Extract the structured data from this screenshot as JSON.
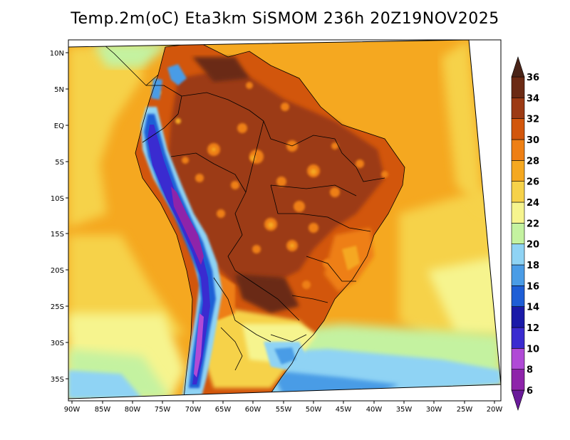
{
  "title": "Temp.2m(oC) Eta3km SiSMOM 236h 20Z19NOV2025",
  "map": {
    "variable": "2 m temperature",
    "units": "oC",
    "lon_labels": [
      "90W",
      "85W",
      "80W",
      "75W",
      "70W",
      "65W",
      "60W",
      "55W",
      "50W",
      "45W",
      "40W",
      "35W",
      "30W",
      "25W",
      "20W"
    ],
    "lat_labels": [
      "10N",
      "5N",
      "EQ",
      "5S",
      "10S",
      "15S",
      "20S",
      "25S",
      "30S",
      "35S"
    ]
  },
  "colorbar": {
    "levels": [
      "6",
      "8",
      "10",
      "12",
      "14",
      "16",
      "18",
      "20",
      "22",
      "24",
      "26",
      "28",
      "30",
      "32",
      "34",
      "36"
    ],
    "colors": [
      "#6a1b9a",
      "#8e24aa",
      "#b04ad6",
      "#3a2bd0",
      "#1a1aa8",
      "#1e5ed6",
      "#4a9ce6",
      "#8fd3f4",
      "#c4f2a0",
      "#f6f48e",
      "#f6d24a",
      "#f5a820",
      "#ee7f14",
      "#d2560c",
      "#9c3a14",
      "#6b2a14",
      "#4a2418"
    ]
  }
}
